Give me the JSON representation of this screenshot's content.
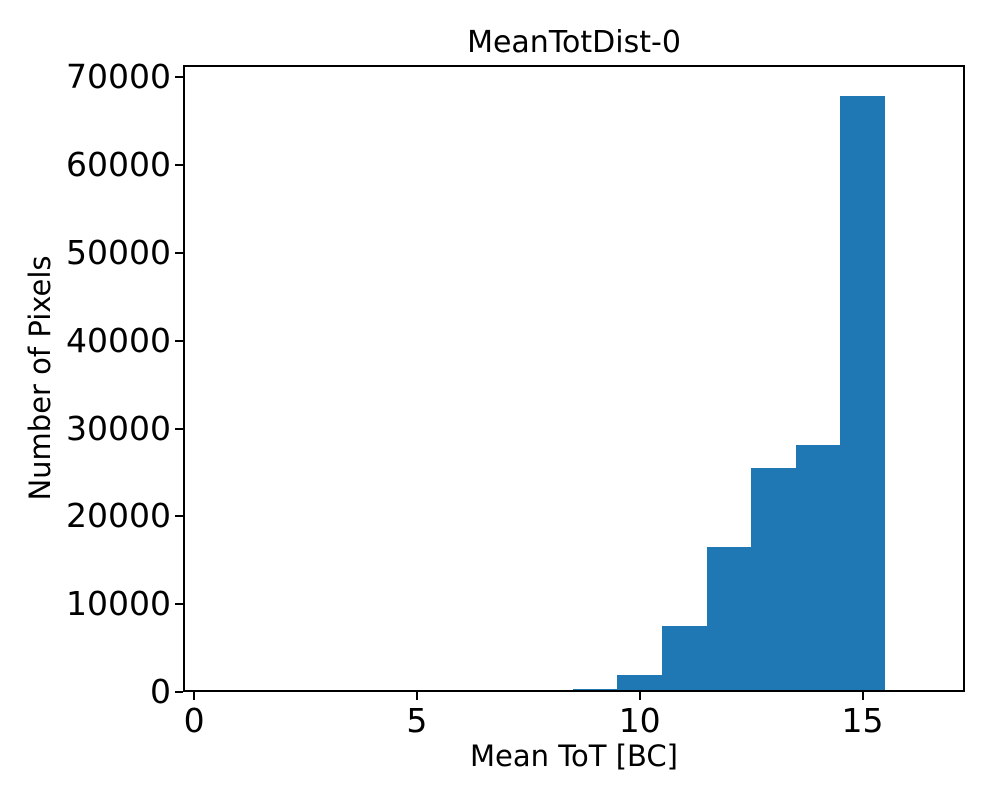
{
  "figure": {
    "background": "#ffffff",
    "text_color": "#000000"
  },
  "chart_data": {
    "type": "bar",
    "subtype": "histogram",
    "title": "MeanTotDist-0",
    "xlabel": "Mean ToT [BC]",
    "ylabel": "Number of Pixels",
    "bar_color": "#1f77b4",
    "spine_color": "#000000",
    "grid": false,
    "legend": null,
    "bin_width": 1,
    "bin_edges": [
      8.5,
      9.5,
      10.5,
      11.5,
      12.5,
      13.5,
      14.5,
      15.5
    ],
    "bin_centers": [
      9,
      10,
      11,
      12,
      13,
      14,
      15
    ],
    "values": [
      350,
      1900,
      7500,
      16500,
      25500,
      28100,
      67900
    ],
    "xlim": [
      -0.25,
      17.3
    ],
    "ylim": [
      0,
      71400
    ],
    "xticks": [
      0,
      5,
      10,
      15
    ],
    "yticks": [
      0,
      10000,
      20000,
      30000,
      40000,
      50000,
      60000,
      70000
    ],
    "xtick_labels": [
      "0",
      "5",
      "10",
      "15"
    ],
    "ytick_labels": [
      "0",
      "10000",
      "20000",
      "30000",
      "40000",
      "50000",
      "60000",
      "70000"
    ]
  }
}
